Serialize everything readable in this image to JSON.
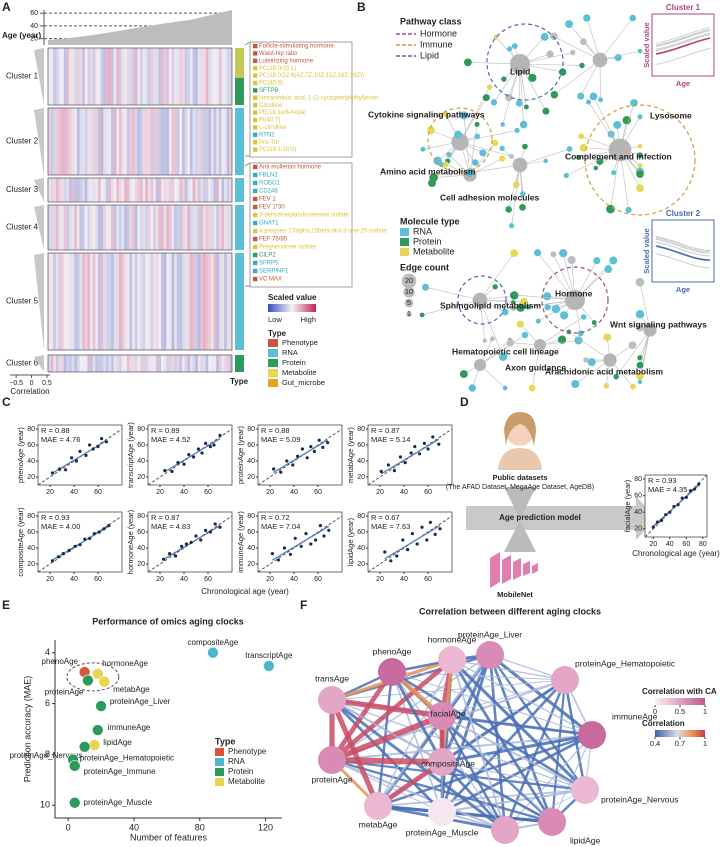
{
  "panel_letters": [
    "A",
    "B",
    "C",
    "D",
    "E",
    "F"
  ],
  "panel_a": {
    "age_label": "Age (year)",
    "age_lim": [
      10,
      65
    ],
    "age_ticks": [
      20,
      40,
      60
    ],
    "clusters": [
      "Cluster 1",
      "Cluster 2",
      "Cluster 3",
      "Cluster 4",
      "Cluster 5",
      "Cluster 6"
    ],
    "correlation_label": "Correlation",
    "correlation_lim": [
      -0.7,
      0.6
    ],
    "correlation_ticks": [
      {
        "value": -0.5,
        "label": "−0.5"
      },
      0,
      0.5
    ],
    "type_label": "Type",
    "feature_groups": [
      [
        {
          "name": "Follicle-stimulating hormone",
          "color": "#c8553d"
        },
        {
          "name": "Waist-hip ratio",
          "color": "#c8553d"
        },
        {
          "name": "Luteinizing hormone",
          "color": "#c8553d"
        },
        {
          "name": "PC(18:0/15:1)",
          "color": "#d9c53f"
        },
        {
          "name": "PC(18:0/22:6(4Z,7Z,10Z,13Z,16Z,19Z))",
          "color": "#d9c53f"
        },
        {
          "name": "PC(40:8)",
          "color": "#d9c53f"
        },
        {
          "name": "SFTPB",
          "color": "#2e9a5a"
        },
        {
          "name": "Hexanedioic acid, 1-(2-cyclopentylethyl)ester",
          "color": "#d9c53f"
        },
        {
          "name": "Citrulline",
          "color": "#d9c53f"
        },
        {
          "name": "PE(18:1e/6-hepa)",
          "color": "#d9c53f"
        },
        {
          "name": "PI(40:7)",
          "color": "#d9c53f"
        },
        {
          "name": "L-citrulline",
          "color": "#d9c53f"
        },
        {
          "name": "RTN2",
          "color": "#3aa9c4"
        },
        {
          "name": "Pro-Thr",
          "color": "#d9c53f"
        },
        {
          "name": "PC(18:1/18:0)",
          "color": "#d9c53f"
        }
      ],
      [
        {
          "name": "Anti-mullerian hormone",
          "color": "#c8553d"
        },
        {
          "name": "FBLN2",
          "color": "#3aa9c4"
        },
        {
          "name": "ROBO1",
          "color": "#3aa9c4"
        },
        {
          "name": "CD248",
          "color": "#3aa9c4"
        },
        {
          "name": "FEV 1",
          "color": "#c8553d"
        },
        {
          "name": "FEV 1*30",
          "color": "#c8553d"
        },
        {
          "name": "3-dehydroepiandrosterone sulfate",
          "color": "#d9c53f"
        },
        {
          "name": "GNAT1",
          "color": "#3aa9c4"
        },
        {
          "name": "4-pregnen-17alpha,20beta-diol-3-one-20-sulfate",
          "color": "#d9c53f"
        },
        {
          "name": "FEF 75/85",
          "color": "#c8553d"
        },
        {
          "name": "Pregnenolone sulfate",
          "color": "#d9c53f"
        },
        {
          "name": "CILP2",
          "color": "#2e9a5a"
        },
        {
          "name": "SFRP5",
          "color": "#3aa9c4"
        },
        {
          "name": "SERPINF1",
          "color": "#3aa9c4"
        },
        {
          "name": "VC MAX",
          "color": "#c8553d"
        }
      ]
    ],
    "scale_title": "Scaled value",
    "scale_low": "Low",
    "scale_high": "High",
    "type_title": "Type",
    "types": [
      {
        "name": "Phenotype",
        "color": "#c8553d"
      },
      {
        "name": "RNA",
        "color": "#5bc0d6"
      },
      {
        "name": "Protein",
        "color": "#2e9a5a"
      },
      {
        "name": "Metabolite",
        "color": "#e8d657"
      },
      {
        "name": "Gut_microbe",
        "color": "#e8a21f"
      }
    ]
  },
  "panel_b": {
    "pathway_title": "Pathway class",
    "pathways": [
      {
        "name": "Hormone",
        "color": "#9a4f86"
      },
      {
        "name": "Immune",
        "color": "#d49a3a"
      },
      {
        "name": "Lipid",
        "color": "#4a6ab0"
      }
    ],
    "labels": [
      "Lipid",
      "Cytokine signaling pathways",
      "Lysosome",
      "Complement and  infection",
      "Amino acid metabolism",
      "Cell adhesion molecules",
      "Hormone",
      "Sphingolipid metabolism",
      "Wnt signaling pathways",
      "Hematopoietic cell lineage",
      "Axon guidance",
      "Arachidonic acid metabolism"
    ],
    "molecule_title": "Molecule type",
    "molecules": [
      {
        "name": "RNA",
        "color": "#5bc0d6"
      },
      {
        "name": "Protein",
        "color": "#2e9a5a"
      },
      {
        "name": "Metabolite",
        "color": "#e8d657"
      }
    ],
    "edge_title": "Edge count",
    "edge_counts": [
      20,
      10,
      5,
      1
    ],
    "insets": [
      {
        "title": "Cluster 1",
        "ylabel": "Scaled value",
        "xlabel": "Age",
        "color": "#b0457e"
      },
      {
        "title": "Cluster 2",
        "ylabel": "Scaled value",
        "xlabel": "Age",
        "color": "#4a6ab0"
      }
    ]
  },
  "panel_c": {
    "xlabel": "Chronological age (year)"
  },
  "panel_d": {
    "source_title": "Public datasets",
    "source_detail": "(The AFAD Dataset, MegaAge Dataset, AgeDB)",
    "model": "Age prediction model",
    "network": "MobileNet"
  },
  "panel_f": {
    "title": "Correlation between different aging clocks",
    "nodes": [
      "proteinAge_Liver",
      "proteinAge_Hematopoietic",
      "immuneAge",
      "proteinAge_Nervous",
      "lipidAge",
      "proteinAge_Immune",
      "proteinAge_Muscle",
      "metabAge",
      "proteinAge",
      "transAge",
      "phenoAge",
      "hormoneAge",
      "facialAge",
      "compositeAge"
    ],
    "ca_title": "Correlation with CA",
    "ca_ticks": [
      0,
      0.5,
      1
    ],
    "corr_title": "Correlation",
    "corr_ticks": [
      0.4,
      0.7,
      1
    ]
  },
  "chart_data": [
    {
      "type": "scatter",
      "ylabel": "phenoAge (year)",
      "annotations": [
        "R = 0.88",
        "MAE = 4.76"
      ],
      "xlim": [
        10,
        80
      ],
      "ylim": [
        10,
        85
      ],
      "xticks": [
        20,
        40,
        60
      ],
      "yticks": [
        20,
        40,
        60,
        80
      ],
      "color": "#1d2a4a",
      "x": [
        22,
        28,
        33,
        38,
        42,
        45,
        50,
        53,
        56,
        60,
        63,
        67
      ],
      "values": [
        25,
        30,
        29,
        44,
        40,
        52,
        47,
        60,
        55,
        58,
        68,
        64
      ]
    },
    {
      "type": "scatter",
      "ylabel": "transcriptAge (year)",
      "annotations": [
        "R = 0.89",
        "MAE = 4.52"
      ],
      "xlim": [
        10,
        80
      ],
      "ylim": [
        10,
        85
      ],
      "xticks": [
        20,
        40,
        60
      ],
      "yticks": [
        20,
        40,
        60,
        80
      ],
      "color": "#1d2a4a",
      "x": [
        24,
        30,
        35,
        40,
        44,
        48,
        52,
        55,
        58,
        62,
        65,
        70
      ],
      "values": [
        28,
        27,
        38,
        36,
        48,
        45,
        55,
        50,
        62,
        58,
        60,
        72
      ]
    },
    {
      "type": "scatter",
      "ylabel": "proteinAge (year)",
      "annotations": [
        "R = 0.88",
        "MAE = 5.09"
      ],
      "xlim": [
        10,
        80
      ],
      "ylim": [
        10,
        85
      ],
      "xticks": [
        20,
        40,
        60
      ],
      "yticks": [
        20,
        40,
        60,
        80
      ],
      "color": "#1d2a4a",
      "x": [
        23,
        29,
        34,
        39,
        43,
        47,
        51,
        54,
        57,
        61,
        64,
        68
      ],
      "values": [
        30,
        26,
        40,
        35,
        46,
        55,
        44,
        58,
        52,
        66,
        57,
        63
      ]
    },
    {
      "type": "scatter",
      "ylabel": "metabAge (year)",
      "annotations": [
        "R = 0.87",
        "MAE = 5.14"
      ],
      "xlim": [
        10,
        80
      ],
      "ylim": [
        10,
        85
      ],
      "xticks": [
        20,
        40,
        60
      ],
      "yticks": [
        20,
        40,
        60,
        80
      ],
      "color": "#1d2a4a",
      "x": [
        21,
        27,
        32,
        37,
        41,
        46,
        49,
        53,
        57,
        60,
        64,
        69
      ],
      "values": [
        27,
        35,
        28,
        45,
        38,
        50,
        58,
        49,
        62,
        55,
        70,
        61
      ]
    },
    {
      "type": "scatter",
      "ylabel": "compositeAge (year)",
      "annotations": [
        "R = 0.93",
        "MAE = 4.00"
      ],
      "xlim": [
        10,
        80
      ],
      "ylim": [
        10,
        85
      ],
      "xticks": [
        20,
        40,
        60
      ],
      "yticks": [
        20,
        40,
        60,
        80
      ],
      "color": "#1d2a4a",
      "x": [
        22,
        27,
        31,
        36,
        41,
        45,
        49,
        53,
        57,
        61,
        65,
        69
      ],
      "values": [
        24,
        29,
        33,
        37,
        42,
        44,
        51,
        52,
        58,
        60,
        64,
        68
      ]
    },
    {
      "type": "scatter",
      "ylabel": "hormoneAge (year)",
      "annotations": [
        "R = 0.87",
        "MAE = 4.83"
      ],
      "xlim": [
        10,
        80
      ],
      "ylim": [
        10,
        85
      ],
      "xticks": [
        20,
        40,
        60
      ],
      "yticks": [
        20,
        40,
        60,
        80
      ],
      "color": "#1d2a4a",
      "x": [
        23,
        28,
        33,
        38,
        42,
        46,
        50,
        54,
        58,
        62,
        66,
        70
      ],
      "values": [
        26,
        33,
        30,
        42,
        45,
        47,
        55,
        50,
        62,
        60,
        70,
        66
      ]
    },
    {
      "type": "scatter",
      "ylabel": "immuneAge (year)",
      "annotations": [
        "R = 0.72",
        "MAE = 7.04"
      ],
      "xlim": [
        10,
        80
      ],
      "ylim": [
        10,
        85
      ],
      "xticks": [
        20,
        40,
        60
      ],
      "yticks": [
        20,
        40,
        60,
        80
      ],
      "color": "#1d2a4a",
      "x": [
        22,
        27,
        32,
        37,
        41,
        46,
        50,
        54,
        58,
        62,
        65,
        69
      ],
      "values": [
        33,
        25,
        40,
        32,
        52,
        42,
        58,
        45,
        50,
        68,
        55,
        62
      ]
    },
    {
      "type": "scatter",
      "ylabel": "lipidAge (year)",
      "annotations": [
        "R = 0.67",
        "MAE = 7.63"
      ],
      "xlim": [
        10,
        80
      ],
      "ylim": [
        10,
        85
      ],
      "xticks": [
        20,
        40,
        60
      ],
      "yticks": [
        20,
        40,
        60,
        80
      ],
      "color": "#1d2a4a",
      "x": [
        24,
        29,
        34,
        39,
        43,
        47,
        51,
        55,
        59,
        62,
        66,
        70
      ],
      "values": [
        35,
        24,
        30,
        50,
        38,
        58,
        45,
        66,
        50,
        72,
        57,
        64
      ]
    },
    {
      "type": "scatter",
      "ylabel": "facialAge (year)",
      "xlabel": "Chronological age (year)",
      "annotations": [
        "R = 0.93",
        "MAE = 4.35"
      ],
      "xlim": [
        10,
        85
      ],
      "ylim": [
        10,
        85
      ],
      "xticks": [
        20,
        40,
        60,
        80
      ],
      "yticks": [
        20,
        40,
        60,
        80
      ],
      "color": "#1d2a4a",
      "x": [
        20,
        25,
        30,
        35,
        40,
        45,
        50,
        55,
        60,
        65,
        70,
        75
      ],
      "values": [
        22,
        28,
        30,
        37,
        40,
        47,
        49,
        57,
        58,
        66,
        68,
        74
      ]
    },
    {
      "type": "labeled_scatter",
      "title": "Performance of omics aging clocks",
      "ylabel": "Prediction accuracy (MAE)",
      "xlabel": "Number of features",
      "xlim": [
        -8,
        130
      ],
      "ylim": [
        3.5,
        10.5
      ],
      "y_inverted": true,
      "xticks": [
        0,
        40,
        80,
        120
      ],
      "yticks": [
        4,
        6,
        8,
        10
      ],
      "labels": [
        "phenoAge",
        "hormoneAge",
        "proteinAge",
        "metabAge",
        "compositeAge",
        "transcriptAge",
        "proteinAge_Liver",
        "immuneAge",
        "lipidAge",
        "proteinAge_Nervous",
        "proteinAge_Hematopoietic",
        "proteinAge_Immune",
        "proteinAge_Muscle"
      ],
      "x": [
        10,
        18,
        12,
        22,
        88,
        122,
        20,
        18,
        16,
        10,
        3,
        4,
        4
      ],
      "values": [
        4.76,
        4.83,
        5.09,
        5.14,
        4.0,
        4.52,
        6.1,
        7.04,
        7.63,
        7.7,
        8.2,
        8.45,
        9.9
      ],
      "colors": [
        "#d9533c",
        "#e8d44d",
        "#2e9a5a",
        "#e8d44d",
        "#4eb7c9",
        "#4eb7c9",
        "#2e9a5a",
        "#2e9a5a",
        "#e8d44d",
        "#2e9a5a",
        "#2e9a5a",
        "#2e9a5a",
        "#2e9a5a"
      ],
      "legend_title": "Type",
      "legend": [
        {
          "name": "Phenotype",
          "color": "#d9533c"
        },
        {
          "name": "RNA",
          "color": "#4eb7c9"
        },
        {
          "name": "Protein",
          "color": "#2e9a5a"
        },
        {
          "name": "Metabolite",
          "color": "#e8d44d"
        }
      ]
    }
  ]
}
